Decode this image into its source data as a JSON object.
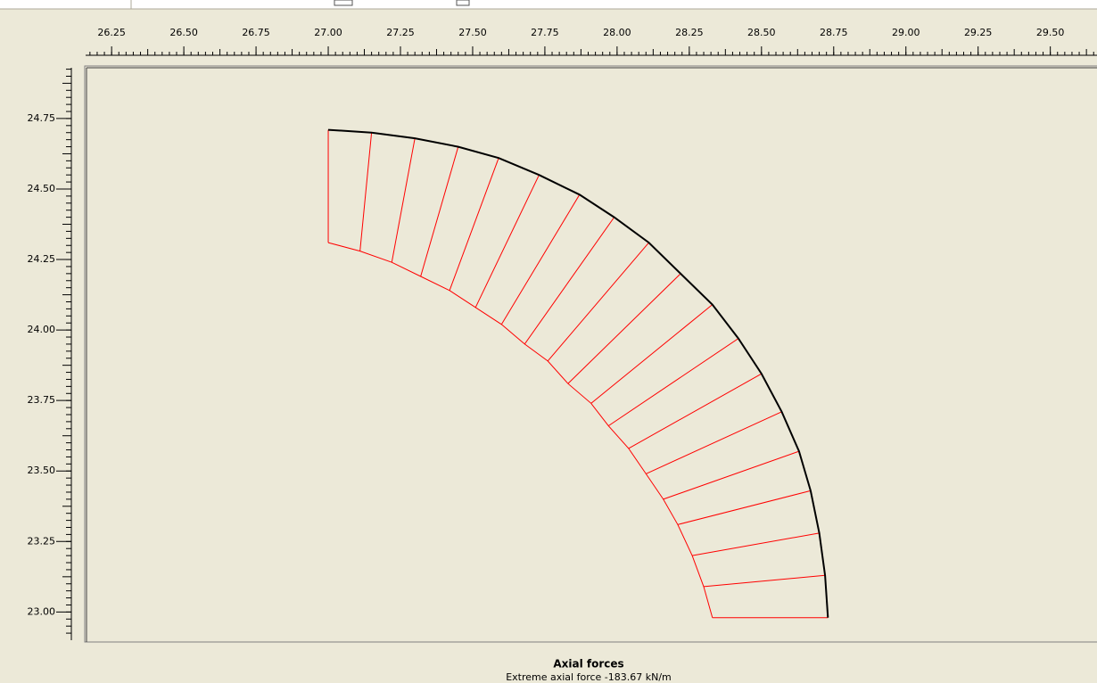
{
  "chart_data": {
    "type": "axial-force-diagram",
    "title": "Axial forces",
    "subtitle": "Extreme axial force -183.67 kN/m",
    "xlim": [
      26.16,
      29.64
    ],
    "ylim": [
      22.9,
      24.93
    ],
    "xticks": [
      26.25,
      {
        "value": 26.5,
        "label": "26.50"
      },
      26.75,
      {
        "value": 27,
        "label": "27.00"
      },
      27.25,
      {
        "value": 27.5,
        "label": "27.50"
      },
      27.75,
      {
        "value": 28,
        "label": "28.00"
      },
      28.25,
      {
        "value": 28.5,
        "label": "28.50"
      },
      28.75,
      {
        "value": 29,
        "label": "29.00"
      },
      29.25,
      {
        "value": 29.5,
        "label": "29.50"
      }
    ],
    "yticks": [
      {
        "value": 23,
        "label": "23.00"
      },
      23.25,
      {
        "value": 23.5,
        "label": "23.50"
      },
      23.75,
      {
        "value": 24,
        "label": "24.00"
      },
      24.25,
      {
        "value": 24.5,
        "label": "24.50"
      },
      24.75
    ],
    "beam": {
      "color": "#000000",
      "x": [
        27.0,
        27.15,
        27.3,
        27.45,
        27.59,
        27.73,
        27.87,
        27.99,
        28.11,
        28.22,
        28.33,
        28.42,
        28.5,
        28.57,
        28.63,
        28.67,
        28.7,
        28.72,
        28.73
      ],
      "y": [
        24.71,
        24.7,
        24.68,
        24.65,
        24.61,
        24.55,
        24.48,
        24.4,
        24.31,
        24.2,
        24.09,
        23.97,
        23.845,
        23.71,
        23.57,
        23.43,
        23.28,
        23.13,
        22.98
      ]
    },
    "envelope": {
      "color": "#ff0000",
      "x": [
        27.0,
        27.11,
        27.22,
        27.32,
        27.42,
        27.51,
        27.6,
        27.68,
        27.76,
        27.83,
        27.91,
        27.97,
        28.04,
        28.1,
        28.16,
        28.21,
        28.26,
        28.3,
        28.33
      ],
      "y": [
        24.31,
        24.28,
        24.24,
        24.19,
        24.14,
        24.08,
        24.02,
        23.95,
        23.89,
        23.81,
        23.74,
        23.66,
        23.58,
        23.49,
        23.4,
        23.31,
        23.2,
        23.09,
        22.98
      ]
    }
  }
}
